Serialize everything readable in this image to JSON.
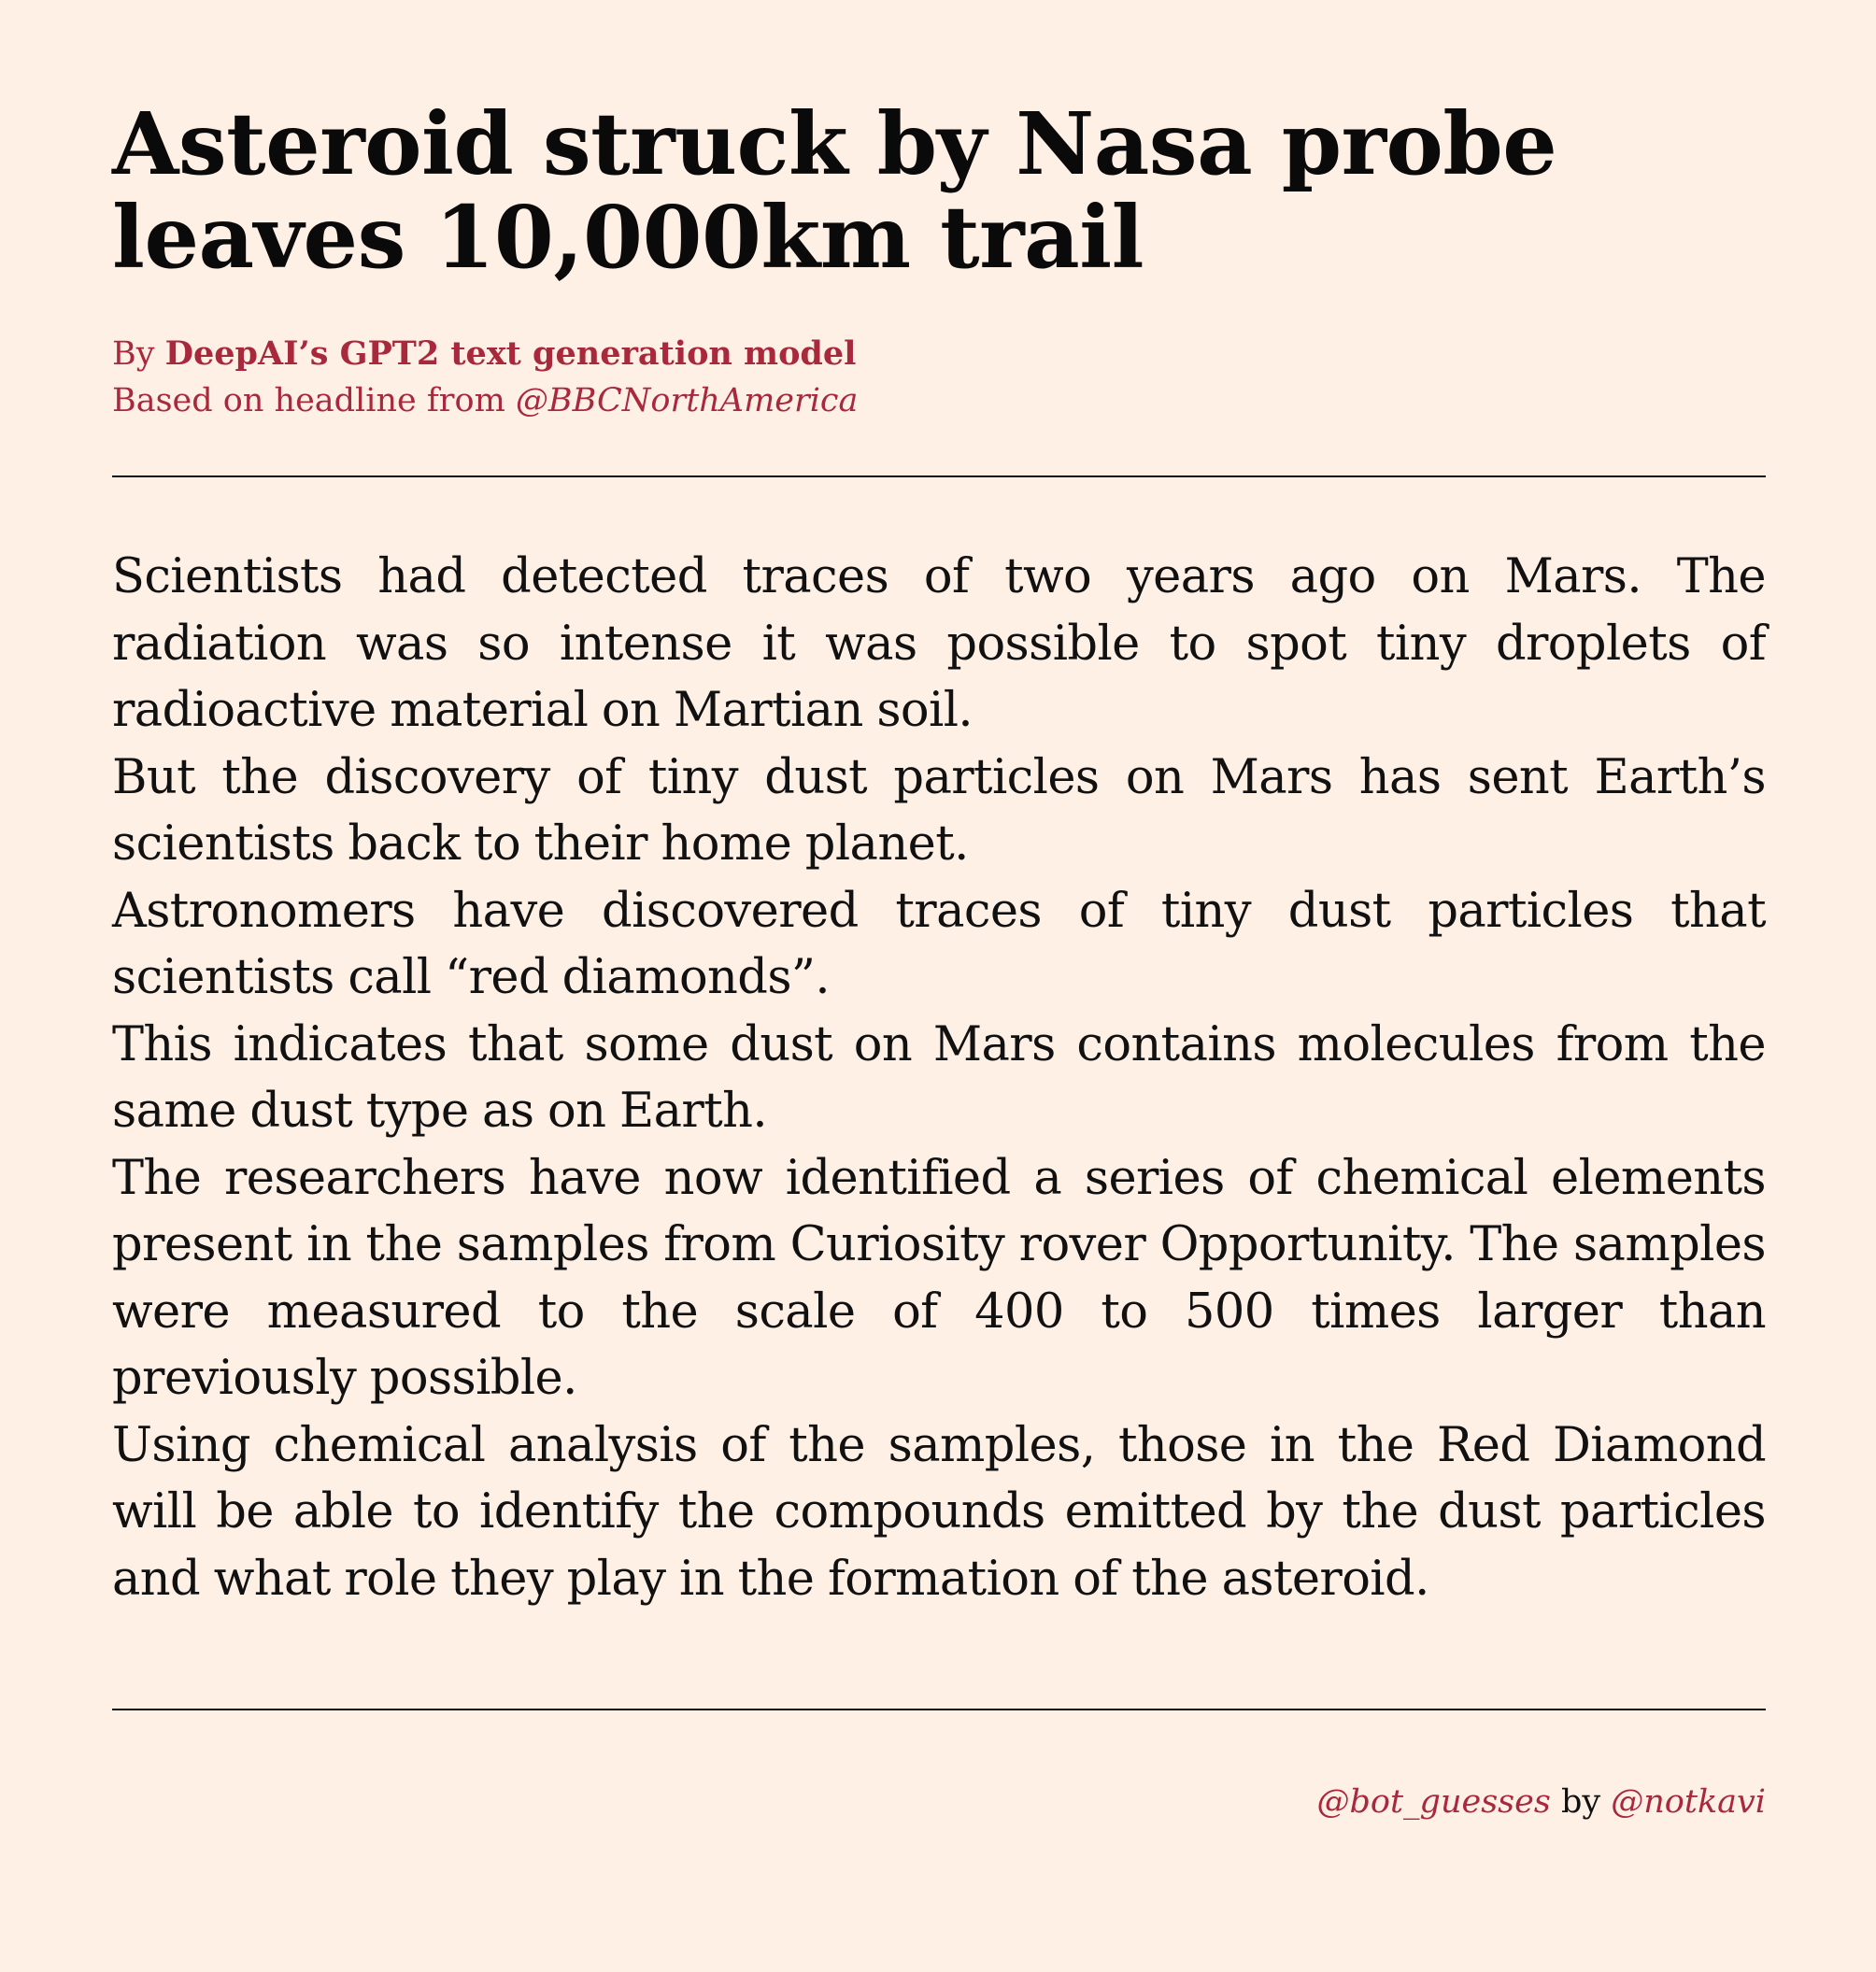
{
  "article": {
    "title": "Asteroid struck by Nasa probe leaves 10,000km trail",
    "byline": {
      "prefix": "By ",
      "author": "DeepAI’s GPT2 text generation model",
      "source_prefix": "Based on headline from ",
      "source_handle": "@BBCNorthAmerica"
    },
    "paragraphs": [
      "Scientists had detected traces of two years ago on Mars. The radiation was so intense it was possible to spot tiny droplets of radioactive material on Martian soil.",
      "But the discovery of tiny dust particles on Mars has sent Earth’s scientists back to their home planet.",
      "Astronomers have discovered traces of tiny dust particles that scientists call “red diamonds”.",
      "This indicates that some dust on Mars contains molecules from the same dust type as on Earth.",
      "The researchers have now identified a series of chemical elements present in the samples from Curiosity rover Opportunity. The samples were measured to the scale of 400 to 500 times larger than previously possible.",
      "Using chemical analysis of the samples, those in the Red Diamond will be able to identify the compounds emitted by the dust particles and what role they play in the formation of the asteroid."
    ]
  },
  "footer": {
    "bot_handle": "@bot_guesses",
    "by": " by ",
    "creator_handle": "@notkavi"
  },
  "colors": {
    "background": "#fff0e6",
    "accent": "#a8283c",
    "text": "#111111"
  }
}
